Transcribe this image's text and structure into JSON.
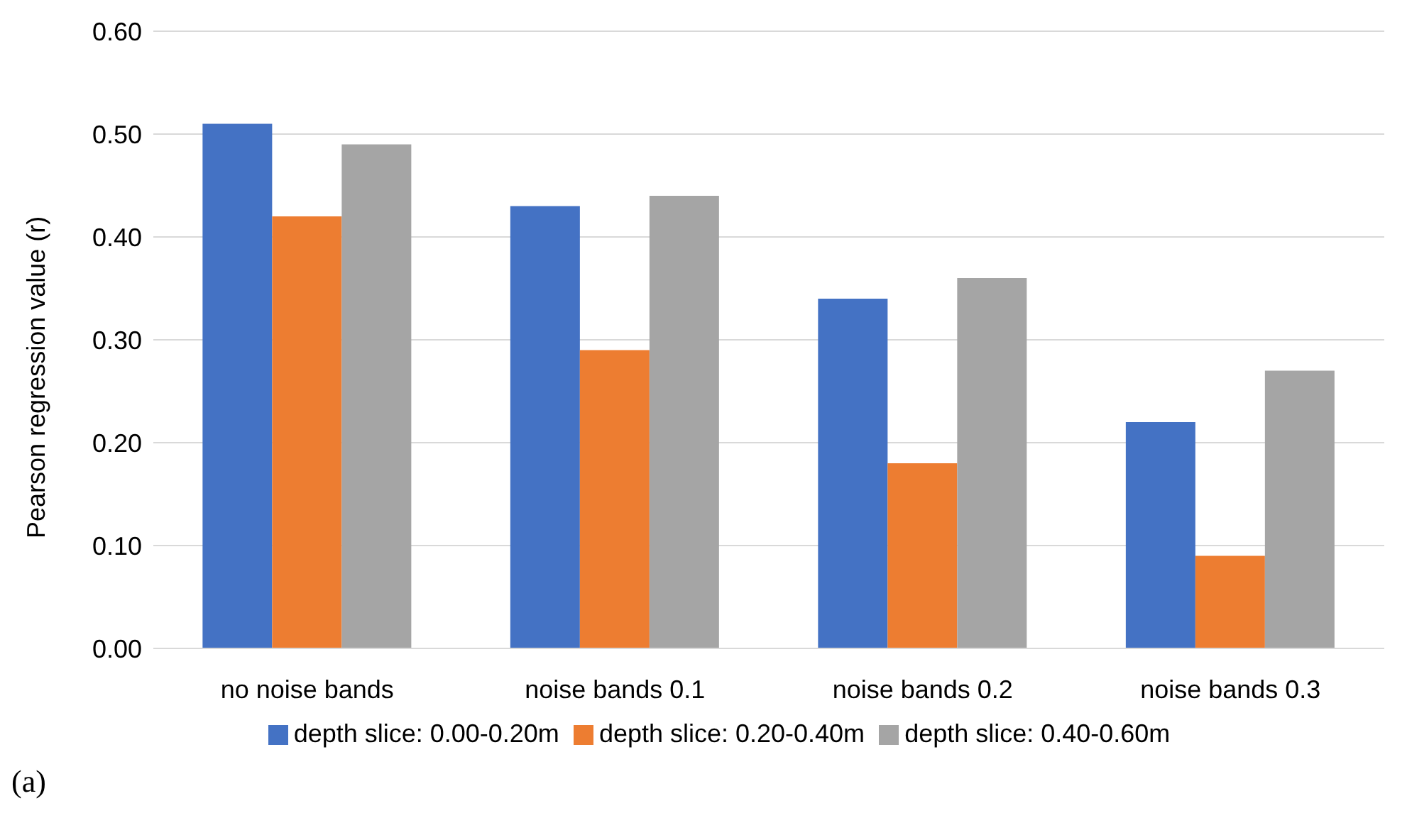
{
  "chart_data": {
    "type": "bar",
    "ylabel": "Pearson regression value (r)",
    "categories": [
      "no noise bands",
      "noise bands 0.1",
      "noise bands 0.2",
      "noise bands 0.3"
    ],
    "series": [
      {
        "name": "depth slice: 0.00-0.20m",
        "color": "#4472c4",
        "values": [
          0.51,
          0.43,
          0.34,
          0.22
        ]
      },
      {
        "name": "depth slice: 0.20-0.40m",
        "color": "#ed7d31",
        "values": [
          0.42,
          0.29,
          0.18,
          0.09
        ]
      },
      {
        "name": "depth slice: 0.40-0.60m",
        "color": "#a5a5a5",
        "values": [
          0.49,
          0.44,
          0.36,
          0.27
        ]
      }
    ],
    "ylim": [
      0,
      0.6
    ],
    "yticks": [
      {
        "value": 0,
        "label": "0.00"
      },
      {
        "value": 0.1,
        "label": "0.10"
      },
      {
        "value": 0.2,
        "label": "0.20"
      },
      {
        "value": 0.3,
        "label": "0.30"
      },
      {
        "value": 0.4,
        "label": "0.40"
      },
      {
        "value": 0.5,
        "label": "0.50"
      },
      {
        "value": 0.6,
        "label": "0.60"
      }
    ],
    "grid": "y",
    "legend": "bottom",
    "annotations": [
      "(a)"
    ]
  }
}
